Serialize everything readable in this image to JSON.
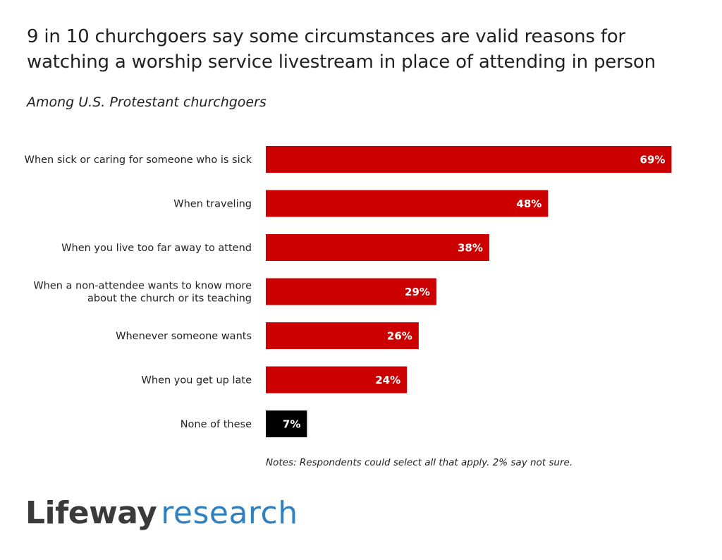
{
  "title_lines": [
    "9 in 10 churchgoers say some circumstances are valid reasons for",
    "watching a worship service livestream in place of attending in person"
  ],
  "subtitle": "Among U.S. Protestant churchgoers",
  "chart_data": {
    "type": "bar",
    "orientation": "horizontal",
    "title": "9 in 10 churchgoers say some circumstances are valid reasons for watching a worship service livestream in place of attending in person",
    "subtitle": "Among U.S. Protestant churchgoers",
    "categories": [
      [
        "When sick or caring for someone who is sick"
      ],
      [
        "When traveling"
      ],
      [
        "When you live too far away to attend"
      ],
      [
        "When a non-attendee wants to know more",
        "about the church or its teaching"
      ],
      [
        "Whenever someone wants"
      ],
      [
        "When you get up late"
      ],
      [
        "None of these"
      ]
    ],
    "values": [
      69,
      48,
      38,
      29,
      26,
      24,
      7
    ],
    "value_labels": [
      "69%",
      "48%",
      "38%",
      "29%",
      "26%",
      "24%",
      "7%"
    ],
    "bar_colors": [
      "#cc0000",
      "#cc0000",
      "#cc0000",
      "#cc0000",
      "#cc0000",
      "#cc0000",
      "#000000"
    ],
    "xlim": [
      0,
      100
    ],
    "grid": false,
    "legend": "none"
  },
  "note": "Notes: Respondents could select all that apply. 2% say not sure.",
  "logo": {
    "brand": "Lifeway",
    "suffix": "research"
  }
}
